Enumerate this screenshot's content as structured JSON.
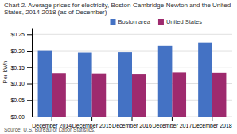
{
  "chart_data": {
    "type": "bar",
    "title": "Chart 2. Average prices for electricity, Boston-Cambridge-Newton  and the United\nStates, 2014-2018 (as of December)",
    "ylabel": "Per kWh",
    "source": "Source: U.S. Bureau of Labor Statistics.",
    "categories": [
      "December 2014",
      "December 2015",
      "December 2016",
      "December 2017",
      "December 2018"
    ],
    "series": [
      {
        "name": "Boston area",
        "color": "#4472C4",
        "values": [
          0.201,
          0.194,
          0.195,
          0.215,
          0.225
        ]
      },
      {
        "name": "United States",
        "color": "#9E2A6E",
        "values": [
          0.132,
          0.131,
          0.13,
          0.134,
          0.133
        ]
      }
    ],
    "ylim": [
      0,
      0.27
    ],
    "yticks": [
      {
        "value": 0.0,
        "label": "$0.00"
      },
      {
        "value": 0.05,
        "label": "$0.05"
      },
      {
        "value": 0.1,
        "label": "$0.10"
      },
      {
        "value": 0.15,
        "label": "$0.15"
      },
      {
        "value": 0.2,
        "label": "$0.20"
      },
      {
        "value": 0.25,
        "label": "$0.25"
      }
    ],
    "grid": true,
    "legend": "top"
  }
}
